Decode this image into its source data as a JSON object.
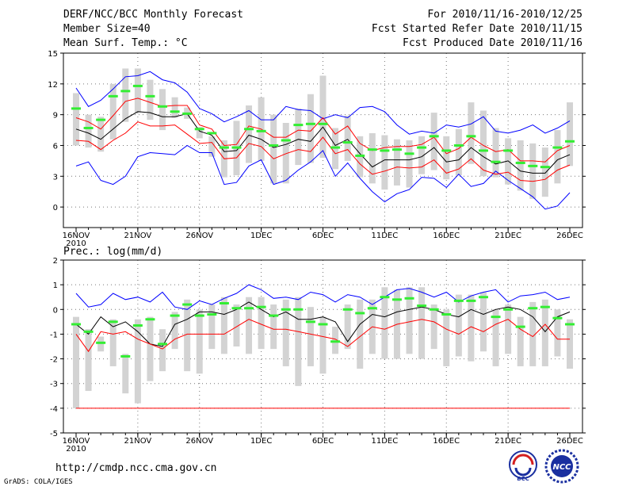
{
  "header": {
    "title": "DERF/NCC/BCC Monthly Forecast",
    "member_size": "Member Size=40",
    "variable_top": "Mean Surf. Temp.: °C",
    "period": "For 2010/11/16-2010/12/25",
    "fcst_started": "Fcst Started Refer Date 2010/11/15",
    "fcst_produced": "Fcst Produced Date 2010/11/16"
  },
  "footer": {
    "url": "http://cmdp.ncc.cma.gov.cn",
    "grads": "GrADS: COLA/IGES",
    "logo_bcc": "BCC",
    "logo_ncc": "NCC"
  },
  "colors": {
    "envelope": "#0000ff",
    "spread": "#ff0000",
    "mean": "#000000",
    "median": "#33ee33",
    "box": "#d3d3d3",
    "grid": "#777777"
  },
  "chart_data": [
    {
      "type": "line",
      "title": "Mean Surf. Temp.: °C",
      "x_tick_labels": [
        "16NOV",
        "21NOV",
        "26NOV",
        "1DEC",
        "6DEC",
        "11DEC",
        "16DEC",
        "21DEC",
        "26DEC"
      ],
      "x_year_label": "2010",
      "x_range_days": [
        0,
        40
      ],
      "ylim": [
        -2,
        15
      ],
      "y_ticks": [
        0,
        3,
        6,
        9,
        12,
        15
      ],
      "series": [
        {
          "name": "ensemble max",
          "color": "blue",
          "values": [
            11.6,
            9.8,
            10.4,
            11.5,
            12.7,
            12.8,
            13.2,
            12.4,
            12.1,
            11.2,
            9.6,
            9.1,
            8.3,
            8.8,
            9.4,
            8.5,
            8.5,
            9.8,
            9.5,
            9.4,
            8.6,
            9.0,
            8.7,
            9.7,
            9.8,
            9.3,
            8.0,
            7.1,
            7.4,
            7.2,
            8.0,
            7.8,
            8.1,
            8.8,
            7.4,
            7.2,
            7.5,
            8.0,
            7.2,
            7.7,
            8.4
          ]
        },
        {
          "name": "ensemble min",
          "color": "blue",
          "values": [
            4.0,
            4.4,
            2.6,
            2.2,
            3.0,
            4.9,
            5.3,
            5.2,
            5.1,
            6.0,
            5.3,
            5.3,
            2.2,
            2.4,
            4.0,
            4.6,
            2.2,
            2.6,
            3.6,
            4.4,
            5.5,
            3.0,
            4.3,
            2.8,
            1.5,
            0.5,
            1.3,
            1.7,
            2.9,
            2.8,
            1.9,
            3.2,
            2.0,
            2.3,
            3.5,
            2.6,
            1.8,
            1.0,
            -0.2,
            0.1,
            1.4
          ]
        },
        {
          "name": "mean + sd",
          "color": "red",
          "values": [
            8.7,
            8.3,
            7.6,
            8.9,
            10.3,
            10.6,
            10.2,
            9.8,
            9.9,
            9.9,
            8.0,
            7.6,
            6.0,
            6.1,
            7.9,
            7.6,
            6.8,
            6.8,
            7.5,
            7.4,
            8.7,
            7.1,
            7.9,
            6.2,
            5.5,
            5.8,
            5.9,
            5.9,
            6.1,
            6.8,
            5.2,
            5.7,
            6.8,
            6.0,
            5.4,
            5.6,
            4.5,
            4.5,
            4.4,
            5.5,
            6.0
          ]
        },
        {
          "name": "mean - sd",
          "color": "red",
          "values": [
            6.5,
            6.4,
            5.6,
            6.5,
            7.2,
            8.3,
            7.9,
            7.9,
            8.0,
            7.1,
            6.2,
            6.3,
            4.7,
            4.8,
            6.2,
            5.9,
            4.7,
            5.2,
            5.6,
            5.4,
            6.8,
            5.2,
            5.6,
            4.2,
            3.2,
            3.5,
            3.9,
            3.8,
            3.9,
            4.6,
            3.3,
            3.7,
            4.7,
            3.6,
            3.2,
            3.4,
            2.6,
            2.5,
            2.7,
            3.6,
            4.1
          ]
        },
        {
          "name": "ensemble mean",
          "color": "black",
          "values": [
            7.6,
            7.2,
            6.6,
            7.6,
            8.6,
            9.3,
            9.2,
            8.8,
            8.8,
            9.1,
            7.4,
            7.0,
            5.4,
            5.5,
            7.0,
            6.6,
            5.8,
            6.1,
            6.6,
            6.4,
            7.8,
            6.0,
            6.6,
            5.2,
            3.9,
            4.6,
            4.6,
            4.6,
            4.9,
            5.8,
            4.4,
            4.6,
            5.8,
            4.9,
            4.2,
            4.5,
            3.5,
            3.3,
            3.3,
            4.6,
            5.1
          ]
        },
        {
          "name": "median",
          "color": "green",
          "values": [
            9.6,
            7.7,
            8.5,
            10.8,
            11.3,
            11.8,
            10.8,
            9.8,
            9.3,
            9.1,
            7.6,
            7.2,
            5.8,
            5.8,
            7.6,
            7.4,
            6.0,
            6.5,
            8.0,
            8.1,
            8.1,
            5.8,
            6.3,
            5.0,
            5.6,
            5.5,
            5.6,
            5.2,
            5.8,
            6.9,
            5.5,
            6.0,
            6.9,
            5.5,
            4.4,
            5.5,
            4.3,
            4.0,
            3.9,
            5.8,
            6.4
          ]
        },
        {
          "name": "box top",
          "color": "lightgray",
          "values": [
            11.1,
            9.0,
            8.8,
            12.0,
            13.5,
            13.5,
            12.4,
            11.5,
            10.7,
            9.7,
            7.8,
            6.9,
            6.5,
            8.4,
            9.9,
            10.7,
            9.0,
            8.2,
            9.6,
            11.0,
            12.8,
            7.7,
            8.9,
            6.9,
            7.2,
            7.0,
            6.6,
            6.5,
            6.9,
            9.2,
            6.9,
            7.6,
            10.2,
            9.4,
            7.7,
            6.7,
            6.5,
            6.2,
            5.8,
            7.5,
            10.2
          ]
        },
        {
          "name": "box bottom",
          "color": "lightgray",
          "values": [
            6.0,
            5.8,
            5.4,
            6.6,
            8.3,
            9.2,
            8.5,
            7.5,
            8.7,
            8.6,
            6.7,
            4.9,
            2.9,
            3.1,
            4.3,
            4.5,
            2.3,
            2.3,
            4.1,
            4.3,
            4.8,
            3.7,
            4.5,
            2.9,
            2.3,
            1.7,
            2.1,
            1.9,
            3.2,
            3.6,
            2.7,
            3.1,
            4.2,
            3.0,
            2.9,
            2.2,
            1.6,
            0.8,
            1.0,
            2.3,
            4.0
          ]
        }
      ]
    },
    {
      "type": "line",
      "title": "Prec.: log(mm/d)",
      "x_tick_labels": [
        "16NOV",
        "21NOV",
        "26NOV",
        "1DEC",
        "6DEC",
        "11DEC",
        "16DEC",
        "21DEC",
        "26DEC"
      ],
      "x_year_label": "2010",
      "x_range_days": [
        0,
        40
      ],
      "ylim": [
        -5,
        2
      ],
      "y_ticks": [
        -5,
        -4,
        -3,
        -2,
        -1,
        0,
        1,
        2
      ],
      "series": [
        {
          "name": "ensemble max",
          "color": "blue",
          "values": [
            0.65,
            0.1,
            0.2,
            0.65,
            0.4,
            0.5,
            0.3,
            0.7,
            0.1,
            0.0,
            0.35,
            0.2,
            0.45,
            0.65,
            1.0,
            0.8,
            0.45,
            0.5,
            0.4,
            0.7,
            0.6,
            0.3,
            0.6,
            0.5,
            0.2,
            0.5,
            0.8,
            0.85,
            0.7,
            0.5,
            0.7,
            0.3,
            0.55,
            0.7,
            0.8,
            0.3,
            0.55,
            0.6,
            0.7,
            0.4,
            0.5
          ]
        },
        {
          "name": "mean + sd",
          "color": "black",
          "values": [
            -0.6,
            -1.0,
            -0.3,
            -0.7,
            -0.5,
            -0.9,
            -1.4,
            -1.5,
            -0.6,
            -0.4,
            -0.1,
            -0.1,
            -0.2,
            0.0,
            0.3,
            0.0,
            -0.3,
            -0.1,
            -0.4,
            -0.4,
            -0.3,
            -0.5,
            -1.3,
            -0.6,
            -0.2,
            -0.3,
            -0.1,
            0.0,
            0.1,
            0.0,
            -0.2,
            -0.3,
            0.0,
            -0.2,
            0.0,
            0.1,
            0.0,
            -0.3,
            -0.9,
            -0.3,
            -0.1
          ]
        },
        {
          "name": "mean - sd",
          "color": "red",
          "values": [
            -1.0,
            -1.7,
            -0.9,
            -1.0,
            -0.9,
            -1.2,
            -1.4,
            -1.6,
            -1.2,
            -1.0,
            -1.0,
            -1.0,
            -1.0,
            -0.7,
            -0.4,
            -0.6,
            -0.8,
            -0.8,
            -0.9,
            -1.0,
            -1.1,
            -1.2,
            -1.5,
            -1.1,
            -0.7,
            -0.8,
            -0.6,
            -0.5,
            -0.4,
            -0.5,
            -0.8,
            -1.0,
            -0.7,
            -0.9,
            -0.6,
            -0.4,
            -0.8,
            -1.1,
            -0.6,
            -1.2,
            -1.2
          ]
        },
        {
          "name": "ensemble min",
          "color": "red",
          "values": [
            -4,
            -4,
            -4,
            -4,
            -4,
            -4,
            -4,
            -4,
            -4,
            -4,
            -4,
            -4,
            -4,
            -4,
            -4,
            -4,
            -4,
            -4,
            -4,
            -4,
            -4,
            -4,
            -4,
            -4,
            -4,
            -4,
            -4,
            -4,
            -4,
            -4,
            -4,
            -4,
            -4,
            -4,
            -4,
            -4,
            -4,
            -4,
            -4,
            -4,
            -4
          ]
        },
        {
          "name": "median",
          "color": "green",
          "values": [
            -0.6,
            -0.9,
            -1.35,
            -0.5,
            -1.9,
            -0.65,
            -0.4,
            -1.4,
            -0.25,
            0.2,
            -0.25,
            -0.2,
            0.25,
            0.05,
            0.05,
            0.1,
            -0.25,
            0.0,
            0.0,
            -0.5,
            -0.6,
            -1.3,
            0.0,
            -0.15,
            0.05,
            0.5,
            0.4,
            0.45,
            0.15,
            0.0,
            -0.2,
            0.35,
            0.35,
            0.5,
            -0.3,
            0.0,
            -0.7,
            0.05,
            0.1,
            -0.35,
            -0.6
          ]
        },
        {
          "name": "box top",
          "color": "lightgray",
          "values": [
            -0.3,
            -0.8,
            -1.1,
            -0.4,
            -1.8,
            -0.4,
            -0.3,
            -0.8,
            -0.1,
            0.4,
            0.0,
            0.2,
            0.5,
            0.2,
            0.5,
            0.5,
            0.2,
            0.4,
            0.5,
            0.1,
            -0.3,
            -0.7,
            0.2,
            0.4,
            0.4,
            0.9,
            0.8,
            0.9,
            0.9,
            0.2,
            0.0,
            0.6,
            0.6,
            0.7,
            0.0,
            0.2,
            -0.3,
            0.3,
            0.4,
            0.0,
            -0.4
          ]
        },
        {
          "name": "box bottom",
          "color": "lightgray",
          "values": [
            -4,
            -3.3,
            -1.7,
            -2.3,
            -3.4,
            -3.8,
            -2.9,
            -2.5,
            -1.6,
            -2.5,
            -2.6,
            -1.6,
            -1.8,
            -1.5,
            -1.8,
            -1.6,
            -1.6,
            -2.3,
            -3.1,
            -2.3,
            -2.6,
            -1.8,
            -1.6,
            -2.4,
            -1.8,
            -2.0,
            -2.0,
            -1.8,
            -2.0,
            -1.6,
            -2.3,
            -1.9,
            -2.1,
            -1.7,
            -2.3,
            -1.8,
            -2.3,
            -2.3,
            -2.3,
            -1.9,
            -2.4
          ]
        }
      ]
    }
  ]
}
